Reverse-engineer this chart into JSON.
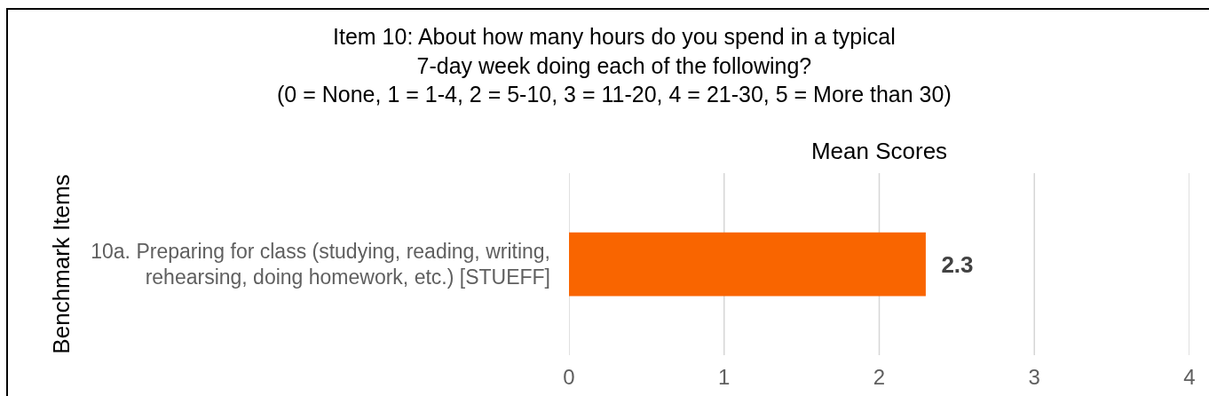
{
  "chart_data": {
    "type": "bar",
    "orientation": "horizontal",
    "title": "Item 10: About how many hours do you spend in a typical\n7-day week doing each of the following?\n(0 = None, 1 = 1-4, 2 = 5-10, 3 = 11-20, 4 = 21-30, 5 = More than 30)",
    "xlabel": "Mean Scores",
    "ylabel": "Benchmark Items",
    "categories": [
      "10a. Preparing for class (studying, reading, writing, rehearsing, doing homework, etc.) [STUEFF]"
    ],
    "values": [
      2.3
    ],
    "color": "#f96500",
    "xlim": [
      0,
      4
    ],
    "xticks": [
      0,
      1,
      2,
      3,
      4
    ],
    "grid": "x",
    "data_labels": true
  }
}
